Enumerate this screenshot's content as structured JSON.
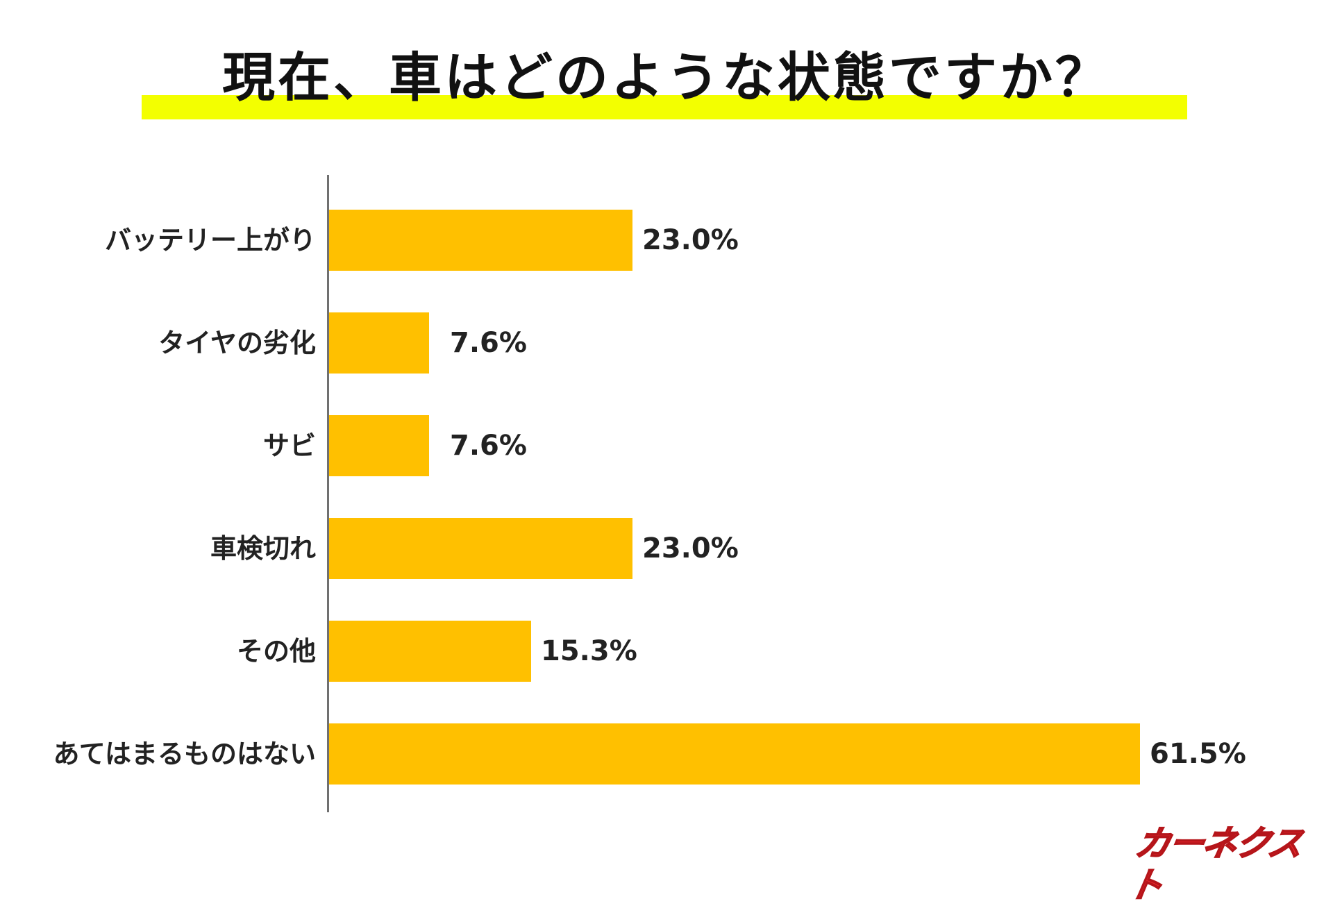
{
  "title": "現在、車はどのような状態ですか？",
  "colors": {
    "title_highlight": "#f3ff00",
    "bar": "#ffc000",
    "axis": "#707070",
    "logo": "#e8262a"
  },
  "logo_text": "カーネクスト",
  "chart_data": {
    "type": "bar",
    "orientation": "horizontal",
    "title": "現在、車はどのような状態ですか？",
    "categories": [
      "バッテリー上がり",
      "タイヤの劣化",
      "サビ",
      "車検切れ",
      "その他",
      "あてはまるものはない"
    ],
    "values": [
      23.0,
      7.6,
      7.6,
      23.0,
      15.3,
      61.5
    ],
    "value_labels": [
      "23.0%",
      "7.6%",
      "7.6%",
      "23.0%",
      "15.3%",
      "61.5%"
    ],
    "unit": "%",
    "xlabel": "",
    "ylabel": "",
    "grid": false,
    "legend": null
  }
}
